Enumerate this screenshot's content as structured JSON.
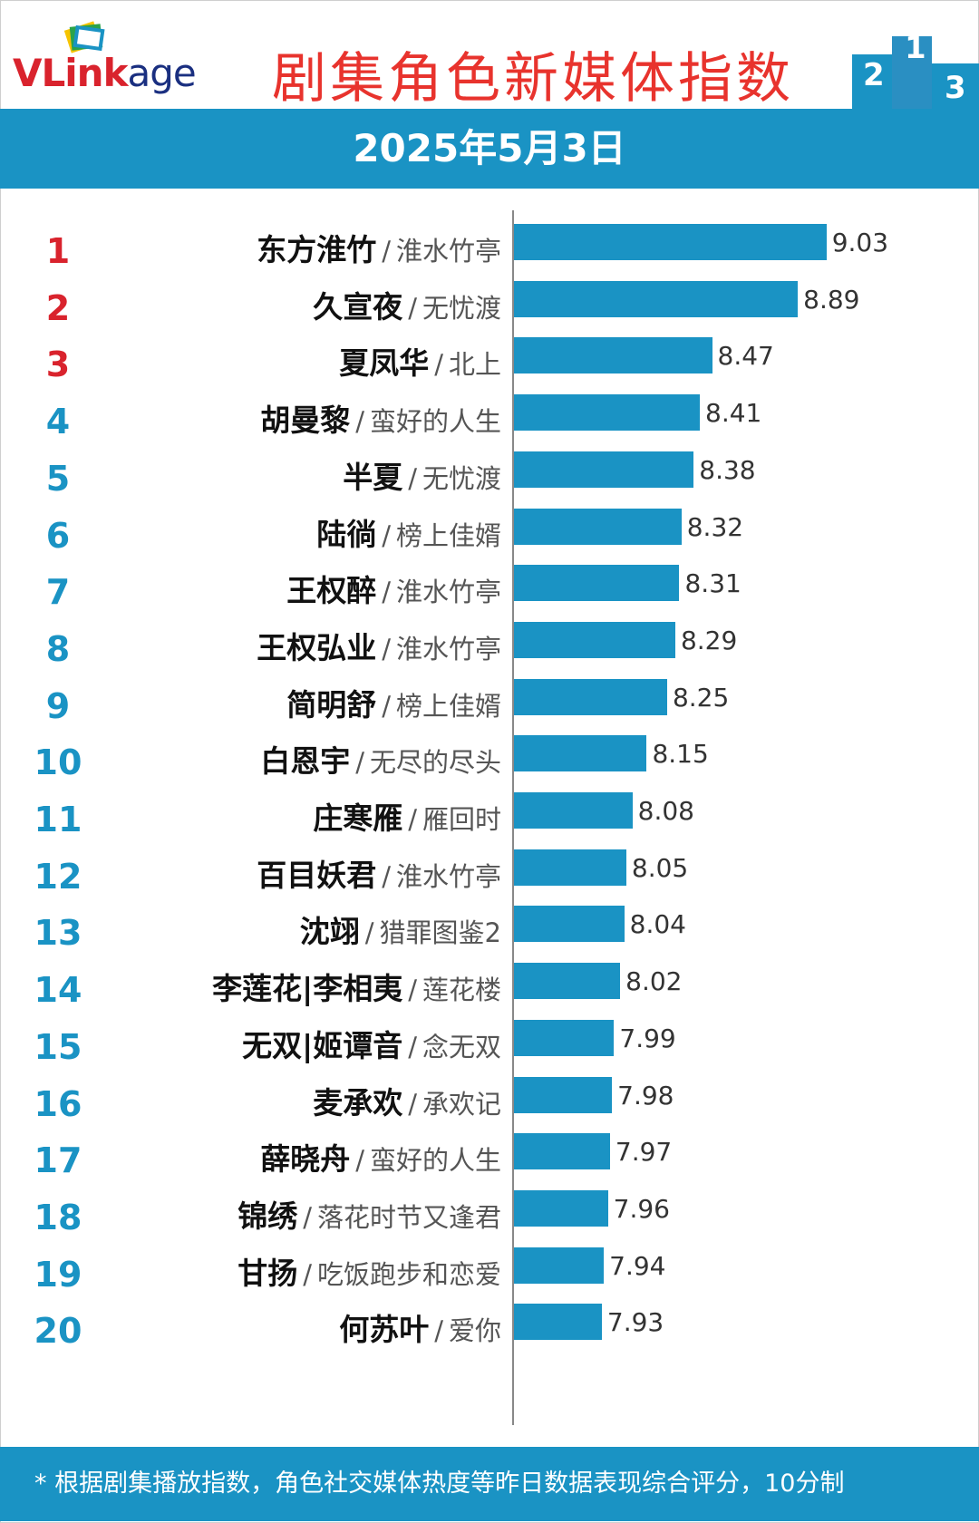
{
  "header": {
    "logo_text": "VLinkage",
    "title": "剧集角色新媒体指数",
    "date": "2025年5月3日"
  },
  "footer": {
    "note": "* 根据剧集播放指数，角色社交媒体热度等昨日数据表现综合评分，10分制"
  },
  "colors": {
    "accent": "#1a93c4",
    "title": "#e8332d",
    "rank_top": "#d9232d"
  },
  "chart_data": {
    "type": "bar",
    "orientation": "horizontal",
    "title": "剧集角色新媒体指数",
    "xlim": [
      7.5,
      9.2
    ],
    "categories": [
      {
        "rank": "1",
        "character": "东方淮竹",
        "drama": "淮水竹亭",
        "value": 9.03
      },
      {
        "rank": "2",
        "character": "久宣夜",
        "drama": "无忧渡",
        "value": 8.89
      },
      {
        "rank": "3",
        "character": "夏凤华",
        "drama": "北上",
        "value": 8.47
      },
      {
        "rank": "4",
        "character": "胡曼黎",
        "drama": "蛮好的人生",
        "value": 8.41
      },
      {
        "rank": "5",
        "character": "半夏",
        "drama": "无忧渡",
        "value": 8.38
      },
      {
        "rank": "6",
        "character": "陆徜",
        "drama": "榜上佳婿",
        "value": 8.32
      },
      {
        "rank": "7",
        "character": "王权醉",
        "drama": "淮水竹亭",
        "value": 8.31
      },
      {
        "rank": "8",
        "character": "王权弘业",
        "drama": "淮水竹亭",
        "value": 8.29
      },
      {
        "rank": "9",
        "character": "简明舒",
        "drama": "榜上佳婿",
        "value": 8.25
      },
      {
        "rank": "10",
        "character": "白恩宇",
        "drama": "无尽的尽头",
        "value": 8.15
      },
      {
        "rank": "11",
        "character": "庄寒雁",
        "drama": "雁回时",
        "value": 8.08
      },
      {
        "rank": "12",
        "character": "百目妖君",
        "drama": "淮水竹亭",
        "value": 8.05
      },
      {
        "rank": "13",
        "character": "沈翊",
        "drama": "猎罪图鉴2",
        "value": 8.04
      },
      {
        "rank": "14",
        "character": "李莲花|李相夷",
        "drama": "莲花楼",
        "value": 8.02
      },
      {
        "rank": "15",
        "character": "无双|姬谭音",
        "drama": "念无双",
        "value": 7.99
      },
      {
        "rank": "16",
        "character": "麦承欢",
        "drama": "承欢记",
        "value": 7.98
      },
      {
        "rank": "17",
        "character": "薛晓舟",
        "drama": "蛮好的人生",
        "value": 7.97
      },
      {
        "rank": "18",
        "character": "锦绣",
        "drama": "落花时节又逢君",
        "value": 7.96
      },
      {
        "rank": "19",
        "character": "甘扬",
        "drama": "吃饭跑步和恋爱",
        "value": 7.94
      },
      {
        "rank": "20",
        "character": "何苏叶",
        "drama": "爱你",
        "value": 7.93
      }
    ]
  }
}
